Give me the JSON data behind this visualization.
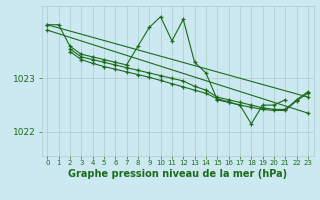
{
  "background_color": "#cce8f0",
  "grid_color": "#aacccc",
  "line_color": "#1a6b1a",
  "marker_color": "#1a6b1a",
  "xlabel": "Graphe pression niveau de la mer (hPa)",
  "xlabel_fontsize": 7,
  "xlim": [
    -0.5,
    23.5
  ],
  "ylim": [
    1021.55,
    1024.35
  ],
  "yticks": [
    1022,
    1023
  ],
  "xticks": [
    0,
    1,
    2,
    3,
    4,
    5,
    6,
    7,
    8,
    9,
    10,
    11,
    12,
    13,
    14,
    15,
    16,
    17,
    18,
    19,
    20,
    21,
    22,
    23
  ],
  "series": [
    {
      "x": [
        0,
        1,
        2,
        3,
        4,
        5,
        6,
        7,
        8,
        9,
        10,
        11,
        12,
        13,
        14,
        15,
        16,
        17,
        18,
        19,
        20,
        21
      ],
      "y": [
        1024.0,
        1024.0,
        1023.6,
        1023.45,
        1023.4,
        1023.35,
        1023.3,
        1023.25,
        1023.6,
        1023.95,
        1024.15,
        1023.7,
        1024.1,
        1023.3,
        1023.1,
        1022.6,
        1022.55,
        1022.5,
        1022.15,
        1022.5,
        1022.5,
        1022.6
      ]
    },
    {
      "x": [
        0,
        23
      ],
      "y": [
        1024.0,
        1022.65
      ]
    },
    {
      "x": [
        0,
        23
      ],
      "y": [
        1023.9,
        1022.35
      ]
    },
    {
      "x": [
        2,
        3,
        4,
        5,
        6,
        7,
        8,
        9,
        10,
        11,
        12,
        13,
        14,
        15,
        16,
        17,
        18,
        19,
        20,
        21,
        22,
        23
      ],
      "y": [
        1023.55,
        1023.4,
        1023.35,
        1023.3,
        1023.25,
        1023.2,
        1023.15,
        1023.1,
        1023.05,
        1023.0,
        1022.95,
        1022.85,
        1022.78,
        1022.65,
        1022.6,
        1022.55,
        1022.5,
        1022.45,
        1022.42,
        1022.42,
        1022.6,
        1022.75
      ]
    },
    {
      "x": [
        2,
        3,
        4,
        5,
        6,
        7,
        8,
        9,
        10,
        11,
        12,
        13,
        14,
        15,
        16,
        17,
        18,
        19,
        20,
        21,
        22,
        23
      ],
      "y": [
        1023.5,
        1023.35,
        1023.28,
        1023.22,
        1023.17,
        1023.12,
        1023.07,
        1023.02,
        1022.96,
        1022.9,
        1022.84,
        1022.78,
        1022.72,
        1022.62,
        1022.56,
        1022.5,
        1022.46,
        1022.42,
        1022.4,
        1022.4,
        1022.58,
        1022.72
      ]
    }
  ]
}
